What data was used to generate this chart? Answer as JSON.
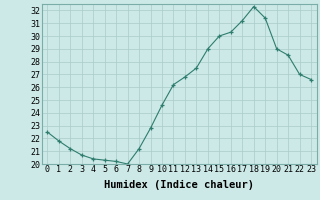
{
  "x": [
    0,
    1,
    2,
    3,
    4,
    5,
    6,
    7,
    8,
    9,
    10,
    11,
    12,
    13,
    14,
    15,
    16,
    17,
    18,
    19,
    20,
    21,
    22,
    23
  ],
  "y": [
    22.5,
    21.8,
    21.2,
    20.7,
    20.4,
    20.3,
    20.2,
    20.0,
    21.2,
    22.8,
    24.6,
    26.2,
    26.8,
    27.5,
    29.0,
    30.0,
    30.3,
    31.2,
    32.3,
    31.4,
    29.0,
    28.5,
    27.0,
    26.6
  ],
  "xlabel": "Humidex (Indice chaleur)",
  "xlim": [
    -0.5,
    23.5
  ],
  "ylim": [
    20,
    32.5
  ],
  "yticks": [
    20,
    21,
    22,
    23,
    24,
    25,
    26,
    27,
    28,
    29,
    30,
    31,
    32
  ],
  "xticks": [
    0,
    1,
    2,
    3,
    4,
    5,
    6,
    7,
    8,
    9,
    10,
    11,
    12,
    13,
    14,
    15,
    16,
    17,
    18,
    19,
    20,
    21,
    22,
    23
  ],
  "line_color": "#2e7d6e",
  "marker": "+",
  "bg_color": "#cce9e7",
  "grid_color": "#aaccca",
  "xlabel_fontsize": 7.5,
  "tick_fontsize": 6
}
